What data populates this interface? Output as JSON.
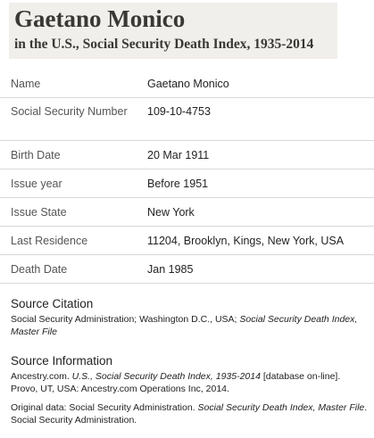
{
  "header": {
    "name": "Gaetano Monico",
    "collection": "in the U.S., Social Security Death Index, 1935-2014"
  },
  "fields": [
    {
      "label": "Name",
      "value": "Gaetano Monico"
    },
    {
      "label": "Social Security Number",
      "value": "109-10-4753"
    },
    {
      "label": "Birth Date",
      "value": "20 Mar 1911"
    },
    {
      "label": "Issue year",
      "value": "Before 1951"
    },
    {
      "label": "Issue State",
      "value": "New York"
    },
    {
      "label": "Last Residence",
      "value": "11204, Brooklyn, Kings, New York, USA"
    },
    {
      "label": "Death Date",
      "value": "Jan 1985"
    }
  ],
  "source_citation": {
    "title": "Source Citation",
    "text_plain": "Social Security Administration; Washington D.C., USA; ",
    "text_italic": "Social Security Death Index, Master File"
  },
  "source_information": {
    "title": "Source Information",
    "p1_a": "Ancestry.com. ",
    "p1_italic": "U.S., Social Security Death Index, 1935-2014",
    "p1_b": " [database on-line]. Provo, UT, USA: Ancestry.com Operations Inc, 2014.",
    "p2_a": "Original data: Social Security Administration. ",
    "p2_italic": "Social Security Death Index, Master File",
    "p2_b": ". Social Security Administration."
  }
}
